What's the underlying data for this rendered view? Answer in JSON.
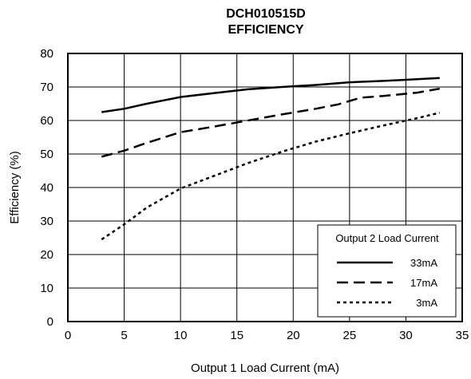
{
  "chart_data": {
    "type": "line",
    "title": "DCH010515D",
    "subtitle": "EFFICIENCY",
    "xlabel": "Output 1 Load Current (mA)",
    "ylabel": "Efficiency (%)",
    "xlim": [
      0,
      35
    ],
    "ylim": [
      0,
      80
    ],
    "x_ticks": [
      "0",
      "5",
      "10",
      "15",
      "20",
      "25",
      "30",
      "35"
    ],
    "y_ticks": [
      "0",
      "10",
      "20",
      "30",
      "40",
      "50",
      "60",
      "70",
      "80"
    ],
    "grid": true,
    "legend": {
      "title": "Output 2 Load Current",
      "placement": "bottom-right"
    },
    "series": [
      {
        "name": "33mA",
        "style": "solid",
        "x": [
          3,
          5,
          7,
          10,
          13,
          16,
          19,
          22,
          25,
          28,
          31,
          33
        ],
        "y": [
          62.5,
          63.5,
          65,
          67,
          68.2,
          69.3,
          70,
          70.6,
          71.4,
          71.8,
          72.3,
          72.7
        ]
      },
      {
        "name": "17mA",
        "style": "dashed",
        "x": [
          3,
          5,
          7,
          10,
          13,
          16,
          19,
          22,
          24,
          26,
          28,
          31,
          33
        ],
        "y": [
          49.2,
          51,
          53.3,
          56.5,
          58.2,
          60,
          61.8,
          63.5,
          64.8,
          66.8,
          67.3,
          68.3,
          69.5
        ]
      },
      {
        "name": "3mA",
        "style": "dotted",
        "x": [
          3,
          5,
          7,
          10,
          13,
          16,
          19,
          22,
          25,
          28,
          31,
          33
        ],
        "y": [
          24.5,
          29,
          34,
          39.7,
          43.5,
          47.3,
          50.7,
          53.7,
          56.2,
          58.5,
          60.7,
          62.3
        ]
      }
    ]
  },
  "colors": {
    "line": "#000000",
    "grid": "#000000",
    "background": "#ffffff"
  }
}
